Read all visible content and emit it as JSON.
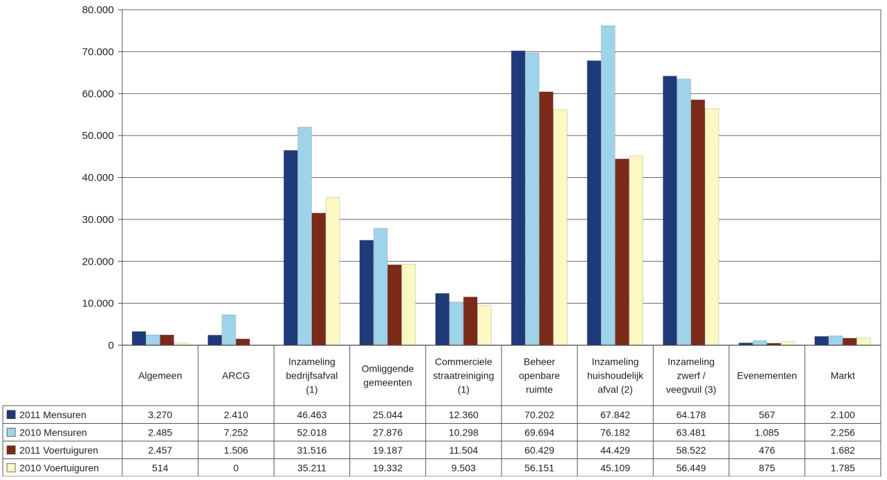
{
  "chart_data": {
    "type": "bar",
    "title": "",
    "xlabel": "",
    "ylabel": "",
    "ylim": [
      0,
      80000
    ],
    "yticks": [
      "0",
      "10.000",
      "20.000",
      "30.000",
      "40.000",
      "50.000",
      "60.000",
      "70.000",
      "80.000"
    ],
    "grid": true,
    "legend": "data-table-left",
    "categories": [
      "Algemeen",
      "ARCG",
      "Inzameling bedrijfsafval (1)",
      "Omliggende gemeenten",
      "Commerciele straatreiniging (1)",
      "Beheer openbare ruimte",
      "Inzameling huishoudelijk afval (2)",
      "Inzameling zwerf / veegvuil (3)",
      "Evenementen",
      "Markt"
    ],
    "category_lines": [
      [
        "Algemeen"
      ],
      [
        "ARCG"
      ],
      [
        "Inzameling",
        "bedrijfsafval",
        "(1)"
      ],
      [
        "Omliggende",
        "gemeenten"
      ],
      [
        "Commerciele",
        "straatreiniging",
        "(1)"
      ],
      [
        "Beheer",
        "openbare",
        "ruimte"
      ],
      [
        "Inzameling",
        "huishoudelijk",
        "afval (2)"
      ],
      [
        "Inzameling",
        "zwerf /",
        "veegvuil (3)"
      ],
      [
        "Evenementen"
      ],
      [
        "Markt"
      ]
    ],
    "series": [
      {
        "name": "2011 Mensuren",
        "color": "#1f3a7a",
        "values": [
          3270,
          2410,
          46463,
          25044,
          12360,
          70202,
          67842,
          64178,
          567,
          2100
        ],
        "labels": [
          "3.270",
          "2.410",
          "46.463",
          "25.044",
          "12.360",
          "70.202",
          "67.842",
          "64.178",
          "567",
          "2.100"
        ]
      },
      {
        "name": "2010 Mensuren",
        "color": "#9fd3ea",
        "values": [
          2485,
          7252,
          52018,
          27876,
          10298,
          69694,
          76182,
          63481,
          1085,
          2256
        ],
        "labels": [
          "2.485",
          "7.252",
          "52.018",
          "27.876",
          "10.298",
          "69.694",
          "76.182",
          "63.481",
          "1.085",
          "2.256"
        ]
      },
      {
        "name": "2011 Voertuiguren",
        "color": "#7b2a1a",
        "values": [
          2457,
          1506,
          31516,
          19187,
          11504,
          60429,
          44429,
          58522,
          476,
          1682
        ],
        "labels": [
          "2.457",
          "1.506",
          "31.516",
          "19.187",
          "11.504",
          "60.429",
          "44.429",
          "58.522",
          "476",
          "1.682"
        ]
      },
      {
        "name": "2010 Voertuiguren",
        "color": "#fbf8c2",
        "values": [
          514,
          0,
          35211,
          19332,
          9503,
          56151,
          45109,
          56449,
          875,
          1785
        ],
        "labels": [
          "514",
          "0",
          "35.211",
          "19.332",
          "9.503",
          "56.151",
          "45.109",
          "56.449",
          "875",
          "1.785"
        ]
      }
    ]
  }
}
